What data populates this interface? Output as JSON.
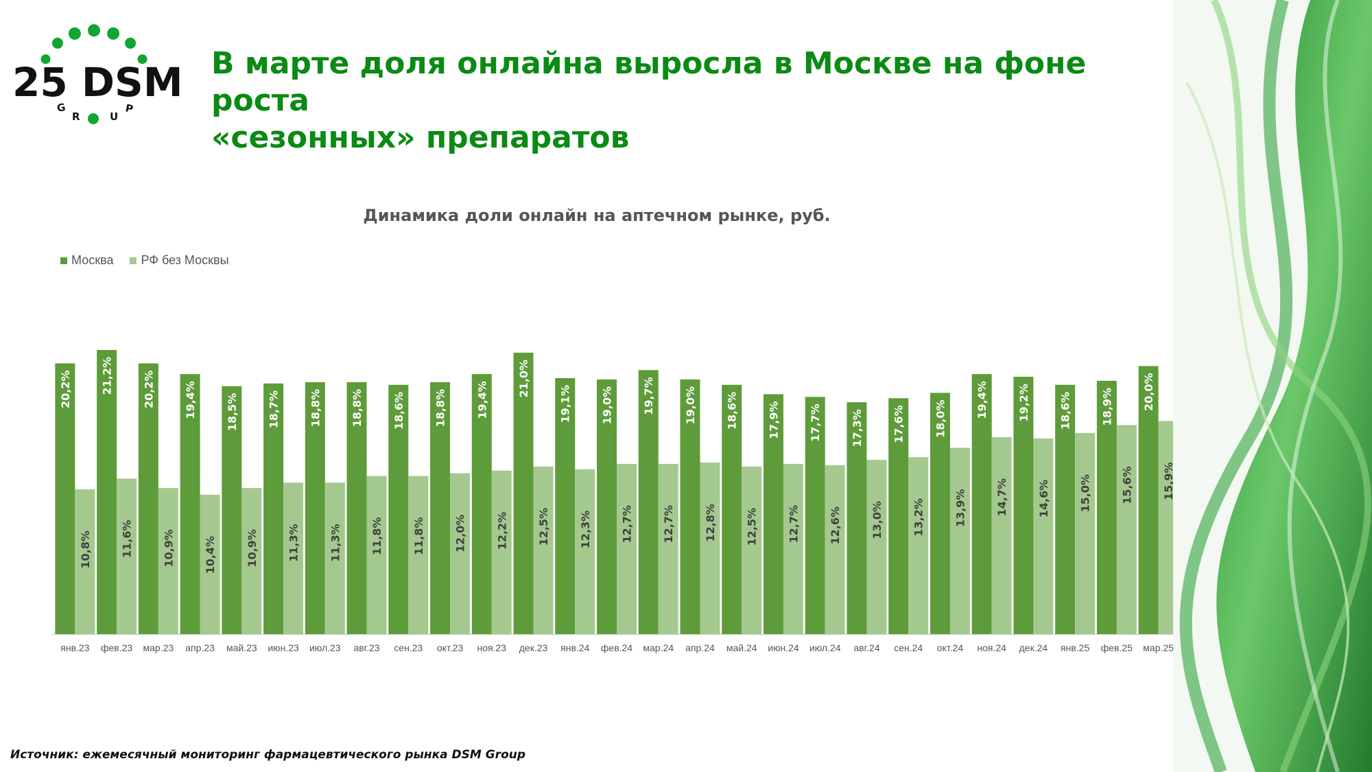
{
  "header": {
    "logo_text": "25 DSM",
    "logo_subtext": "GROUP",
    "title_line1": "В марте доля онлайна выросла в Москве на фоне роста",
    "title_line2": "«сезонных» препаратов"
  },
  "colors": {
    "title": "#0b8a14",
    "moscow": "#5e9b3a",
    "rf": "#a4c98e",
    "logo_dots": "#12a534"
  },
  "chart_data": {
    "type": "bar",
    "title": "Динамика доли онлайн на аптечном рынке, руб.",
    "legend": [
      "Москва",
      "РФ без Москвы"
    ],
    "legend_position": "top-left",
    "categories": [
      "янв.23",
      "фев.23",
      "мар.23",
      "апр.23",
      "май.23",
      "июн.23",
      "июл.23",
      "авг.23",
      "сен.23",
      "окт.23",
      "ноя.23",
      "дек.23",
      "янв.24",
      "фев.24",
      "мар.24",
      "апр.24",
      "май.24",
      "июн.24",
      "июл.24",
      "авг.24",
      "сен.24",
      "окт.24",
      "ноя.24",
      "дек.24",
      "янв.25",
      "фев.25",
      "мар.25"
    ],
    "series": [
      {
        "name": "Москва",
        "values": [
          20.2,
          21.2,
          20.2,
          19.4,
          18.5,
          18.7,
          18.8,
          18.8,
          18.6,
          18.8,
          19.4,
          21.0,
          19.1,
          19.0,
          19.7,
          19.0,
          18.6,
          17.9,
          17.7,
          17.3,
          17.6,
          18.0,
          19.4,
          19.2,
          18.6,
          18.9,
          20.0
        ],
        "labels": [
          "20,2%",
          "21,2%",
          "20,2%",
          "19,4%",
          "18,5%",
          "18,7%",
          "18,8%",
          "18,8%",
          "18,6%",
          "18,8%",
          "19,4%",
          "21,0%",
          "19,1%",
          "19,0%",
          "19,7%",
          "19,0%",
          "18,6%",
          "17,9%",
          "17,7%",
          "17,3%",
          "17,6%",
          "18,0%",
          "19,4%",
          "19,2%",
          "18,6%",
          "18,9%",
          "20,0%"
        ]
      },
      {
        "name": "РФ без Москвы",
        "values": [
          10.8,
          11.6,
          10.9,
          10.4,
          10.9,
          11.3,
          11.3,
          11.8,
          11.8,
          12.0,
          12.2,
          12.5,
          12.3,
          12.7,
          12.7,
          12.8,
          12.5,
          12.7,
          12.6,
          13.0,
          13.2,
          13.9,
          14.7,
          14.6,
          15.0,
          15.6,
          15.9
        ],
        "labels": [
          "10,8%",
          "11,6%",
          "10,9%",
          "10,4%",
          "10,9%",
          "11,3%",
          "11,3%",
          "11,8%",
          "11,8%",
          "12,0%",
          "12,2%",
          "12,5%",
          "12,3%",
          "12,7%",
          "12,7%",
          "12,8%",
          "12,5%",
          "12,7%",
          "12,6%",
          "13,0%",
          "13,2%",
          "13,9%",
          "14,7%",
          "14,6%",
          "15,0%",
          "15,6%",
          "15,9%"
        ]
      }
    ],
    "ylim": [
      0,
      21.2
    ],
    "xlabel": "",
    "ylabel": "",
    "grid": false
  },
  "footer": {
    "source": "Источник: ежемесячный мониторинг фармацевтического рынка DSM Group"
  }
}
